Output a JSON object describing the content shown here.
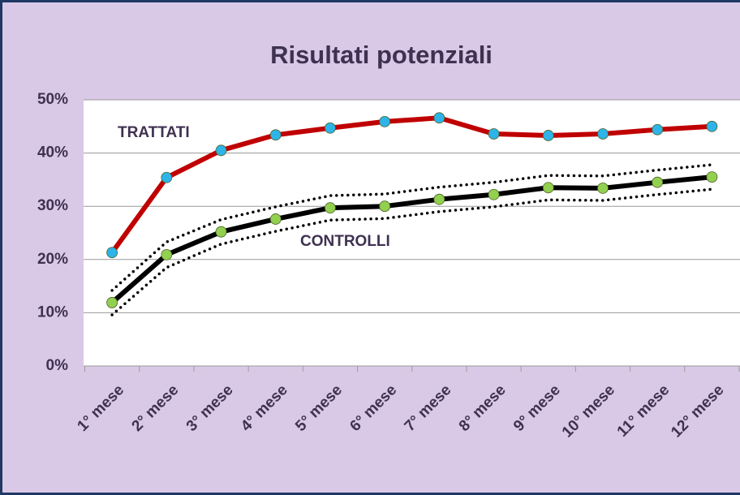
{
  "chart_data": {
    "type": "line",
    "title": "Risultati potenziali",
    "categories": [
      "1° mese",
      "2° mese",
      "3° mese",
      "4° mese",
      "5° mese",
      "6° mese",
      "7° mese",
      "8° mese",
      "9° mese",
      "10° mese",
      "11° mese",
      "12° mese"
    ],
    "series": [
      {
        "name": "TRATTATI",
        "color": "#c00000",
        "marker_color": "#2db4e8",
        "line_style": "solid",
        "values": [
          21.3,
          35.4,
          40.5,
          43.4,
          44.7,
          45.9,
          46.6,
          43.6,
          43.3,
          43.6,
          44.4,
          45.0
        ]
      },
      {
        "name": "CONTROLLI",
        "color": "#000000",
        "marker_color": "#92d050",
        "line_style": "solid",
        "values": [
          11.9,
          20.9,
          25.2,
          27.6,
          29.7,
          30.0,
          31.3,
          32.2,
          33.5,
          33.4,
          34.5,
          35.5
        ]
      },
      {
        "color": "#000000",
        "line_style": "dotted",
        "values": [
          14.2,
          23.3,
          27.5,
          29.9,
          32.0,
          32.3,
          33.6,
          34.5,
          35.8,
          35.7,
          36.8,
          37.8
        ]
      },
      {
        "color": "#000000",
        "line_style": "dotted",
        "values": [
          9.6,
          18.5,
          22.9,
          25.3,
          27.4,
          27.7,
          29.0,
          29.9,
          31.2,
          31.1,
          32.2,
          33.2
        ]
      }
    ],
    "ylim": [
      0,
      50
    ],
    "yticks": [
      {
        "value": 0,
        "label": "0%"
      },
      {
        "value": 10,
        "label": "10%"
      },
      {
        "value": 20,
        "label": "20%"
      },
      {
        "value": 30,
        "label": "30%"
      },
      {
        "value": 40,
        "label": "40%"
      },
      {
        "value": 50,
        "label": "50%"
      }
    ],
    "grid": true
  }
}
